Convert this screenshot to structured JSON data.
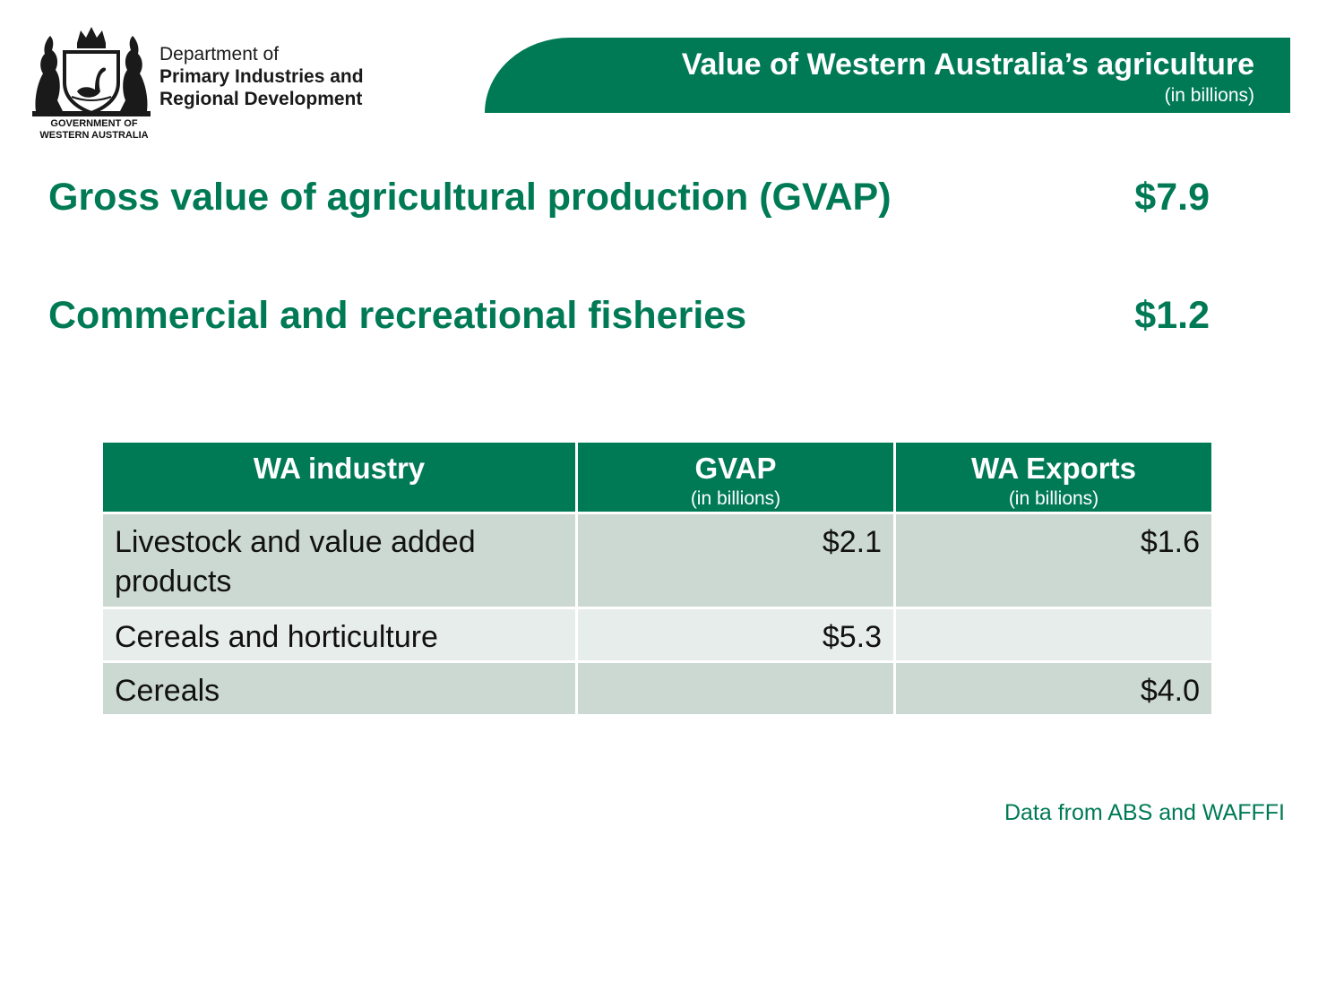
{
  "colors": {
    "brand_green": "#007a55",
    "row_dark": "#ccd9d2",
    "row_light": "#e7edea"
  },
  "logo": {
    "crest_icon": "wa-coat-of-arms-icon",
    "government_lines": [
      "GOVERNMENT OF",
      "WESTERN AUSTRALIA"
    ],
    "department_lines": [
      "Department of",
      "Primary Industries and",
      "Regional Development"
    ]
  },
  "header": {
    "title": "Value of Western Australia’s agriculture",
    "subtitle": "(in billions)"
  },
  "stats": [
    {
      "label": "Gross value of agricultural production (GVAP)",
      "value": "$7.9"
    },
    {
      "label": "Commercial and recreational fisheries",
      "value": "$1.2"
    }
  ],
  "table": {
    "columns": [
      {
        "title": "WA industry",
        "sub": ""
      },
      {
        "title": "GVAP",
        "sub": "(in billions)"
      },
      {
        "title": "WA Exports",
        "sub": "(in billions)"
      }
    ],
    "rows": [
      {
        "industry": "Livestock and value added products",
        "gvap": "$2.1",
        "exports": "$1.6"
      },
      {
        "industry": "Cereals and horticulture",
        "gvap": "$5.3",
        "exports": ""
      },
      {
        "industry": "Cereals",
        "gvap": "",
        "exports": "$4.0"
      }
    ]
  },
  "footer": {
    "source": "Data from ABS and WAFFFI"
  }
}
